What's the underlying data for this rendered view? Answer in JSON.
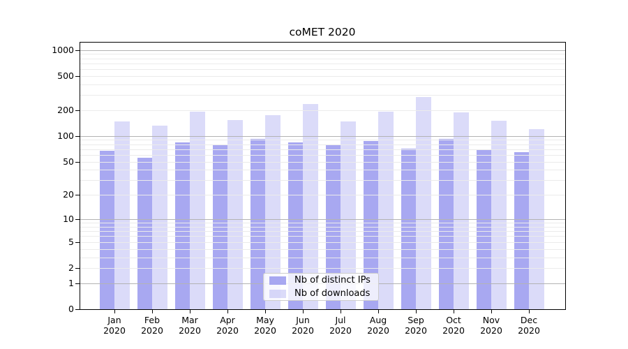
{
  "chart_data": {
    "type": "bar",
    "title": "coMET 2020",
    "categories": [
      "Jan",
      "Feb",
      "Mar",
      "Apr",
      "May",
      "Jun",
      "Jul",
      "Aug",
      "Sep",
      "Oct",
      "Nov",
      "Dec"
    ],
    "category_year": "2020",
    "series": [
      {
        "name": "Nb of distinct IPs",
        "color": "rgba(153,153,238,0.85)",
        "values": [
          67,
          56,
          84,
          78,
          92,
          85,
          79,
          87,
          71,
          92,
          70,
          65
        ]
      },
      {
        "name": "Nb of downloads",
        "color": "rgba(153,153,238,0.35)",
        "values": [
          149,
          131,
          193,
          155,
          176,
          238,
          148,
          193,
          287,
          189,
          151,
          120
        ]
      }
    ],
    "yscale": "log1p",
    "ylim": [
      0,
      1216
    ],
    "yticks": [
      0,
      1,
      2,
      5,
      10,
      20,
      50,
      100,
      200,
      500,
      1000
    ],
    "grid": {
      "major_lines": [
        1,
        10,
        100,
        1000
      ],
      "minor_lines": [
        2,
        3,
        4,
        5,
        6,
        7,
        8,
        9,
        20,
        30,
        40,
        50,
        60,
        70,
        80,
        90,
        200,
        300,
        400,
        500,
        600,
        700,
        800,
        900
      ],
      "major_color": "#b3b3b3",
      "minor_color": "#ebebeb"
    },
    "legend_position": "lower center",
    "axis_color": "#000000"
  }
}
